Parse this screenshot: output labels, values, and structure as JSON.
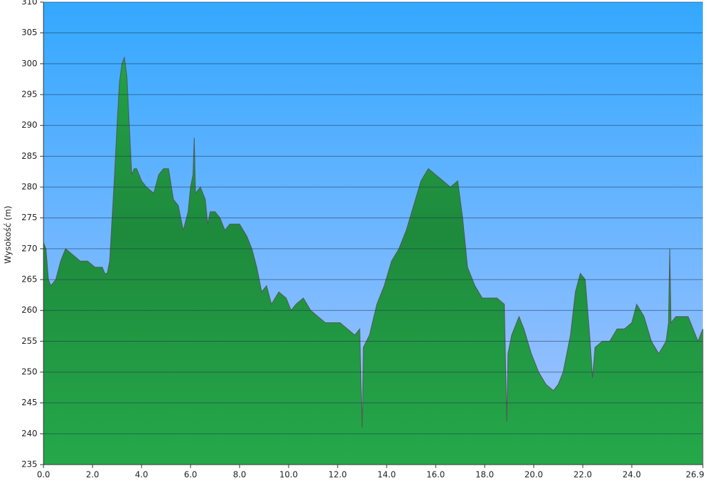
{
  "chart_data": {
    "type": "area",
    "y_label": "Wysokość (m)",
    "color": "#23a046",
    "x": [
      0.0,
      0.1,
      0.2,
      0.3,
      0.5,
      0.7,
      0.9,
      1.2,
      1.5,
      1.8,
      2.1,
      2.4,
      2.5,
      2.6,
      2.7,
      2.8,
      2.9,
      3.0,
      3.1,
      3.2,
      3.3,
      3.4,
      3.5,
      3.6,
      3.7,
      3.8,
      4.0,
      4.2,
      4.5,
      4.7,
      4.9,
      5.1,
      5.3,
      5.5,
      5.7,
      5.9,
      6.0,
      6.1,
      6.15,
      6.2,
      6.4,
      6.6,
      6.7,
      6.8,
      7.0,
      7.2,
      7.4,
      7.6,
      7.8,
      8.0,
      8.3,
      8.5,
      8.7,
      8.9,
      9.1,
      9.3,
      9.6,
      9.9,
      10.1,
      10.3,
      10.6,
      10.9,
      11.2,
      11.5,
      11.8,
      12.1,
      12.4,
      12.7,
      12.9,
      13.0,
      13.05,
      13.3,
      13.6,
      13.9,
      14.2,
      14.5,
      14.8,
      15.1,
      15.4,
      15.7,
      16.0,
      16.3,
      16.6,
      16.9,
      17.1,
      17.3,
      17.6,
      17.9,
      18.2,
      18.5,
      18.8,
      18.9,
      18.95,
      19.1,
      19.4,
      19.6,
      19.9,
      20.2,
      20.5,
      20.8,
      21.0,
      21.2,
      21.5,
      21.7,
      21.9,
      22.1,
      22.3,
      22.4,
      22.5,
      22.8,
      23.1,
      23.4,
      23.7,
      24.0,
      24.2,
      24.5,
      24.8,
      25.1,
      25.4,
      25.5,
      25.55,
      25.6,
      25.8,
      26.0,
      26.3,
      26.5,
      26.7,
      26.9
    ],
    "values": [
      271,
      270,
      265,
      264,
      265,
      268,
      270,
      269,
      268,
      268,
      267,
      267,
      266,
      266,
      268,
      275,
      282,
      290,
      297,
      300,
      301,
      298,
      290,
      282,
      283,
      283,
      281,
      280,
      279,
      282,
      283,
      283,
      278,
      277,
      273,
      276,
      280,
      282,
      288,
      279,
      280,
      278,
      274,
      276,
      276,
      275,
      273,
      274,
      274,
      274,
      272,
      270,
      267,
      263,
      264,
      261,
      263,
      262,
      260,
      261,
      262,
      260,
      259,
      258,
      258,
      258,
      257,
      256,
      257,
      241,
      254,
      256,
      261,
      264,
      268,
      270,
      273,
      277,
      281,
      283,
      282,
      281,
      280,
      281,
      275,
      267,
      264,
      262,
      262,
      262,
      261,
      242,
      253,
      256,
      259,
      257,
      253,
      250,
      248,
      247,
      248,
      250,
      256,
      263,
      266,
      265,
      255,
      249,
      254,
      255,
      255,
      257,
      257,
      258,
      261,
      259,
      255,
      253,
      255,
      258,
      270,
      258,
      259,
      259,
      259,
      257,
      255,
      257
    ],
    "xlim": [
      0,
      26.9
    ],
    "xticks": [
      {
        "value": 0,
        "label": "0.0"
      },
      {
        "value": 2,
        "label": "2.0"
      },
      {
        "value": 4,
        "label": "4.0"
      },
      {
        "value": 6,
        "label": "6.0"
      },
      {
        "value": 8,
        "label": "8.0"
      },
      {
        "value": 10,
        "label": "10.0"
      },
      {
        "value": 12,
        "label": "12.0"
      },
      {
        "value": 14,
        "label": "14.0"
      },
      {
        "value": 16,
        "label": "16.0"
      },
      {
        "value": 18,
        "label": "18.0"
      },
      {
        "value": 20,
        "label": "20.0"
      },
      {
        "value": 22,
        "label": "22.0"
      },
      {
        "value": 24,
        "label": "24.0"
      },
      26.9
    ],
    "ylim": [
      235,
      310
    ],
    "yticks": [
      235,
      240,
      245,
      250,
      255,
      260,
      265,
      270,
      275,
      280,
      285,
      290,
      295,
      300,
      305,
      310
    ],
    "grid": true
  }
}
